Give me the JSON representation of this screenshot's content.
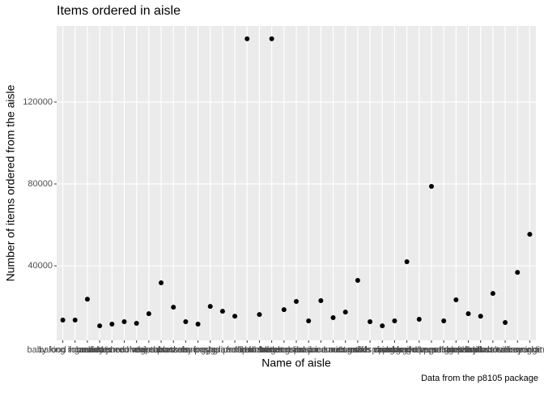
{
  "chart_data": {
    "type": "scatter",
    "title": "Items ordered in aisle",
    "x_label": "Name of aisle",
    "y_label": "Number of items ordered from the aisle",
    "caption": "Data from the p8105 package",
    "categories": [
      "baby food formula",
      "baking ingredients",
      "bread",
      "butter",
      "candy chocolate",
      "canned jarred vegetables",
      "canned meals beans",
      "cereal",
      "chips pretzels",
      "crackers",
      "cream",
      "dry pasta",
      "eggs",
      "energy granola bars",
      "fresh dips tapenades",
      "fresh fruits",
      "fresh herbs",
      "fresh vegetables",
      "frozen meals",
      "frozen produce",
      "hot dogs bacon sausage",
      "ice cream ice",
      "juice nectars",
      "lunch meat",
      "milk",
      "nuts seeds dried fruit",
      "oils vinegars",
      "other creams cheeses",
      "packaged cheese",
      "packaged produce",
      "packaged vegetables fruits",
      "paper goods",
      "refrigerated",
      "soft drinks",
      "soup broth bouillon",
      "soy lactosefree",
      "spices seasonings",
      "water seltzer sparkling water",
      "yogurt"
    ],
    "values": [
      13500,
      13500,
      23700,
      10700,
      11500,
      12700,
      11900,
      16600,
      31700,
      19800,
      12700,
      11500,
      20200,
      17800,
      15400,
      150900,
      16200,
      150900,
      18600,
      22600,
      13100,
      23000,
      14700,
      17400,
      32900,
      12700,
      10700,
      13100,
      42000,
      13900,
      78800,
      13100,
      23400,
      16600,
      15400,
      26500,
      12300,
      36800,
      55400
    ],
    "color": "#000000",
    "ylim": [
      3600,
      157200
    ],
    "yticks": [
      40000,
      80000,
      120000
    ],
    "grid": true
  }
}
